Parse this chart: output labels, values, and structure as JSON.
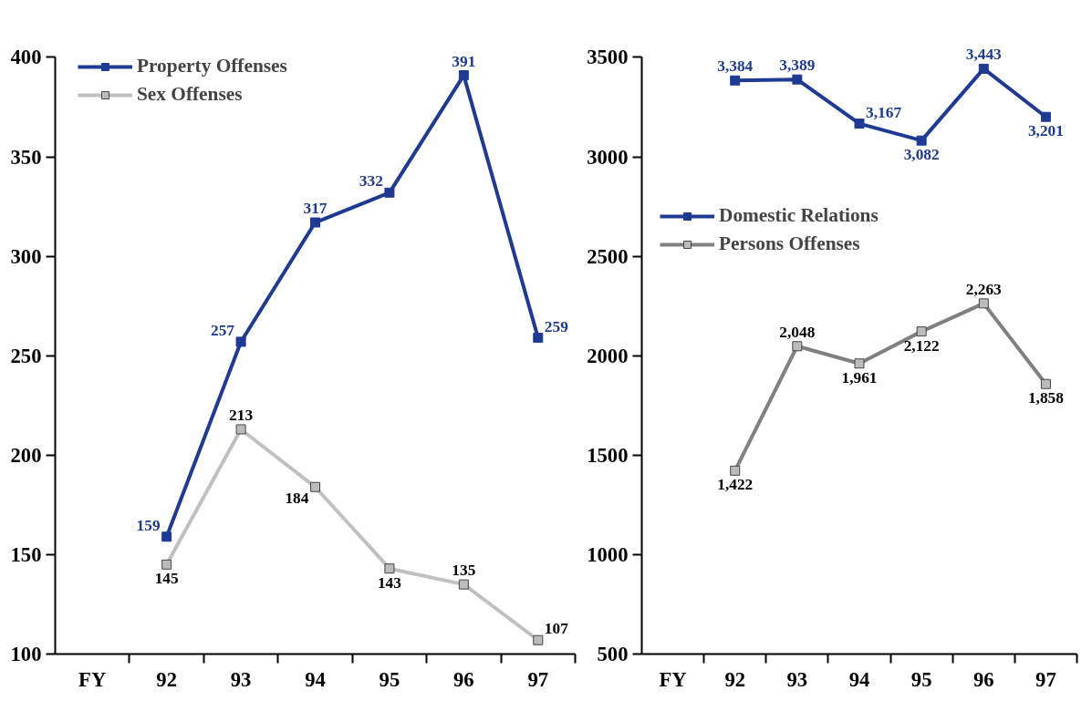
{
  "chart_data": [
    {
      "type": "line",
      "categories": [
        "FY",
        "92",
        "93",
        "94",
        "95",
        "96",
        "97"
      ],
      "ylim": [
        100,
        400
      ],
      "yticks": [
        100,
        150,
        200,
        250,
        300,
        350,
        400
      ],
      "grid": false,
      "legend": "top left",
      "marker": "square",
      "line_style": "solid",
      "data_labels": true,
      "series": [
        {
          "name": "Property Offenses",
          "color": "#1f3a93",
          "values": [
            null,
            159,
            257,
            317,
            332,
            391,
            259
          ]
        },
        {
          "name": "Sex Offenses",
          "color": "#c0c0c0",
          "values": [
            null,
            145,
            213,
            184,
            143,
            135,
            107
          ]
        }
      ]
    },
    {
      "type": "line",
      "categories": [
        "FY",
        "92",
        "93",
        "94",
        "95",
        "96",
        "97"
      ],
      "ylim": [
        500,
        3500
      ],
      "yticks": [
        500,
        1000,
        1500,
        2000,
        2500,
        3000,
        3500
      ],
      "grid": false,
      "legend": "left",
      "marker": "square",
      "line_style": "solid",
      "data_labels": true,
      "series": [
        {
          "name": "Domestic Relations",
          "color": "#1f3a93",
          "values": [
            null,
            3384,
            3389,
            3167,
            3082,
            3443,
            3201
          ],
          "value_labels": [
            null,
            "3,384",
            "3,389",
            "3,167",
            "3,082",
            "3,443",
            "3,201"
          ]
        },
        {
          "name": "Persons Offenses",
          "color": "#808080",
          "values": [
            null,
            1422,
            2048,
            1961,
            2122,
            2263,
            1858
          ],
          "value_labels": [
            null,
            "1,422",
            "2,048",
            "1,961",
            "2,122",
            "2,263",
            "1,858"
          ]
        }
      ]
    }
  ]
}
